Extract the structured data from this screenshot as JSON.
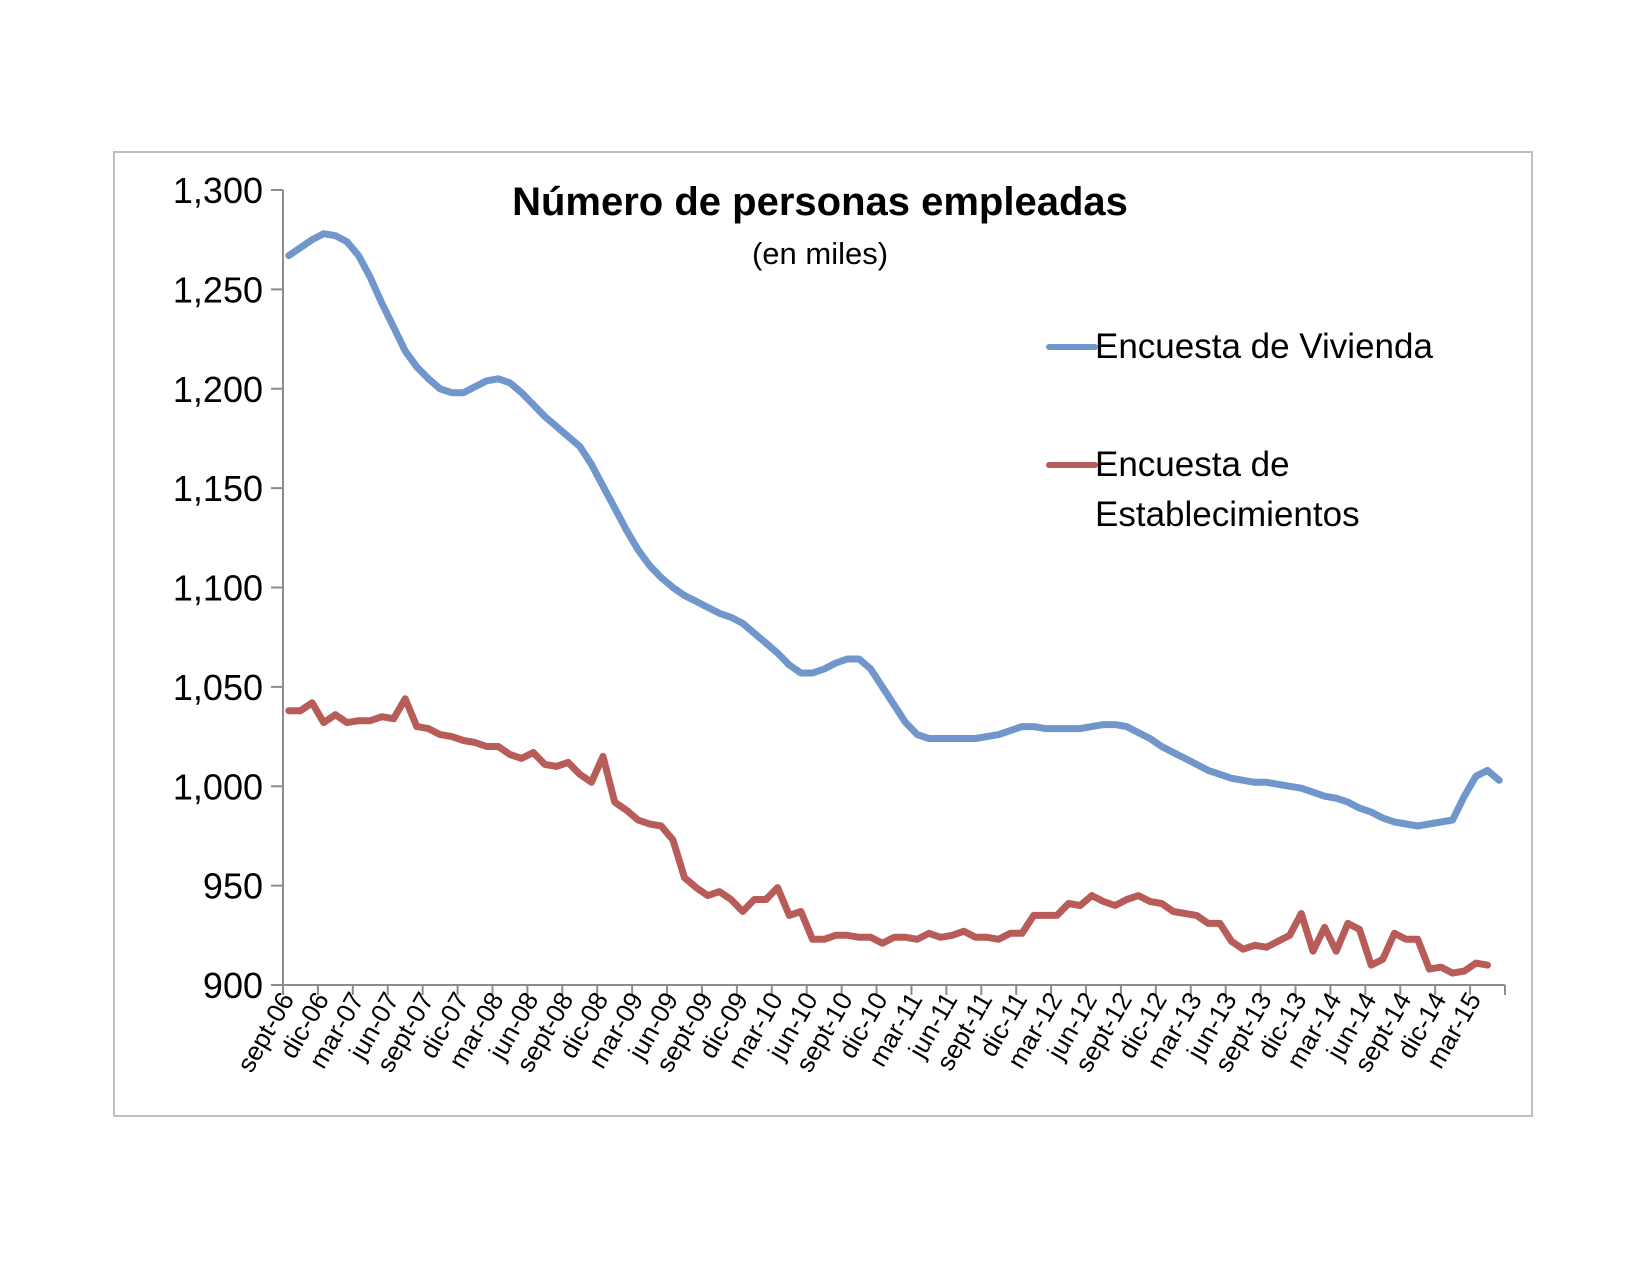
{
  "chart_data": {
    "type": "line",
    "title": "Número de personas empleadas",
    "subtitle": "(en miles)",
    "xlabel": "",
    "ylabel": "",
    "ylim": [
      900,
      1300
    ],
    "yticks": [
      900,
      950,
      1000,
      1050,
      1100,
      1150,
      1200,
      1250,
      1300
    ],
    "ytick_labels": [
      "900",
      "950",
      "1,000",
      "1,050",
      "1,100",
      "1,150",
      "1,200",
      "1,250",
      "1,300"
    ],
    "xtick_labels": [
      "sept-06",
      "dic-06",
      "mar-07",
      "jun-07",
      "sept-07",
      "dic-07",
      "mar-08",
      "jun-08",
      "sept-08",
      "dic-08",
      "mar-09",
      "jun-09",
      "sept-09",
      "dic-09",
      "mar-10",
      "jun-10",
      "sept-10",
      "dic-10",
      "mar-11",
      "jun-11",
      "sept-11",
      "dic-11",
      "mar-12",
      "jun-12",
      "sept-12",
      "dic-12",
      "mar-13",
      "jun-13",
      "sept-13",
      "dic-13",
      "mar-14",
      "jun-14",
      "sept-14",
      "dic-14",
      "mar-15"
    ],
    "grid": false,
    "legend": "right",
    "series": [
      {
        "name": "Encuesta de Vivienda",
        "color": "#7096cb",
        "values": [
          1267,
          1271,
          1275,
          1278,
          1277,
          1274,
          1267,
          1256,
          1243,
          1231,
          1219,
          1211,
          1205,
          1200,
          1198,
          1198,
          1201,
          1204,
          1205,
          1203,
          1198,
          1192,
          1186,
          1181,
          1176,
          1171,
          1162,
          1151,
          1140,
          1129,
          1119,
          1111,
          1105,
          1100,
          1096,
          1093,
          1090,
          1087,
          1085,
          1082,
          1077,
          1072,
          1067,
          1061,
          1057,
          1057,
          1059,
          1062,
          1064,
          1064,
          1059,
          1050,
          1041,
          1032,
          1026,
          1024,
          1024,
          1024,
          1024,
          1024,
          1025,
          1026,
          1028,
          1030,
          1030,
          1029,
          1029,
          1029,
          1029,
          1030,
          1031,
          1031,
          1030,
          1027,
          1024,
          1020,
          1017,
          1014,
          1011,
          1008,
          1006,
          1004,
          1003,
          1002,
          1002,
          1001,
          1000,
          999,
          997,
          995,
          994,
          992,
          989,
          987,
          984,
          982,
          981,
          980,
          981,
          982,
          983,
          995,
          1005,
          1008,
          1003
        ]
      },
      {
        "name": "Encuesta de Establecimientos",
        "color": "#b85c5a",
        "values": [
          1038,
          1038,
          1042,
          1032,
          1036,
          1032,
          1033,
          1033,
          1035,
          1034,
          1044,
          1030,
          1029,
          1026,
          1025,
          1023,
          1022,
          1020,
          1020,
          1016,
          1014,
          1017,
          1011,
          1010,
          1012,
          1006,
          1002,
          1015,
          992,
          988,
          983,
          981,
          980,
          973,
          954,
          949,
          945,
          947,
          943,
          937,
          943,
          943,
          949,
          935,
          937,
          923,
          923,
          925,
          925,
          924,
          924,
          921,
          924,
          924,
          923,
          926,
          924,
          925,
          927,
          924,
          924,
          923,
          926,
          926,
          935,
          935,
          935,
          941,
          940,
          945,
          942,
          940,
          943,
          945,
          942,
          941,
          937,
          936,
          935,
          931,
          931,
          922,
          918,
          920,
          919,
          922,
          925,
          936,
          917,
          929,
          917,
          931,
          928,
          910,
          913,
          926,
          923,
          923,
          908,
          909,
          906,
          907,
          911,
          910
        ]
      }
    ]
  }
}
